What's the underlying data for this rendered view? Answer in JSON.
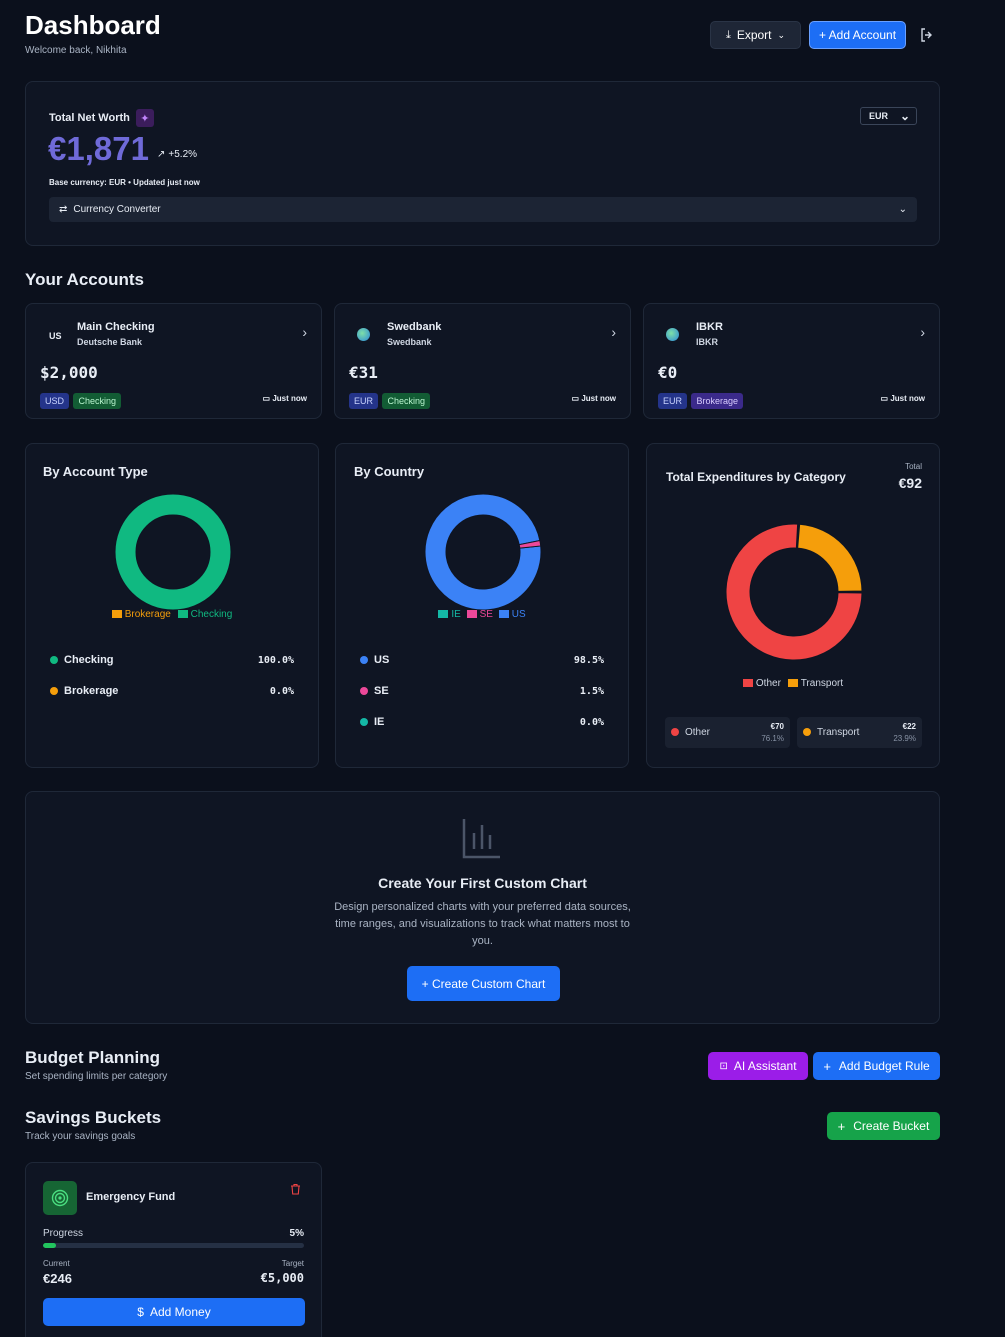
{
  "header": {
    "title": "Dashboard",
    "subtitle": "Welcome back, Nikhita",
    "export_label": "Export",
    "add_account_label": "+ Add Account"
  },
  "networth": {
    "label": "Total Net Worth",
    "value": "€1,871",
    "change": "+5.2%",
    "currency": "EUR",
    "meta": "Base currency: EUR • Updated just now",
    "converter_label": "Currency Converter"
  },
  "accounts": {
    "heading": "Your Accounts",
    "items": [
      {
        "icon": "US",
        "name": "Main Checking",
        "bank": "Deutsche Bank",
        "balance": "$2,000",
        "currency": "USD",
        "type": "Checking",
        "updated": "Just now"
      },
      {
        "icon": "globe",
        "name": "Swedbank",
        "bank": "Swedbank",
        "balance": "€31",
        "currency": "EUR",
        "type": "Checking",
        "updated": "Just now"
      },
      {
        "icon": "globe",
        "name": "IBKR",
        "bank": "IBKR",
        "balance": "€0",
        "currency": "EUR",
        "type": "Brokerage",
        "updated": "Just now"
      }
    ]
  },
  "by_type": {
    "title": "By Account Type",
    "legend": [
      "Brokerage",
      "Checking"
    ],
    "rows": [
      {
        "label": "Checking",
        "value": "100.0%",
        "color": "#10b981"
      },
      {
        "label": "Brokerage",
        "value": "0.0%",
        "color": "#f59e0b"
      }
    ]
  },
  "by_country": {
    "title": "By Country",
    "legend": [
      "IE",
      "SE",
      "US"
    ],
    "rows": [
      {
        "label": "US",
        "value": "98.5%",
        "color": "#3b82f6"
      },
      {
        "label": "SE",
        "value": "1.5%",
        "color": "#ec4899"
      },
      {
        "label": "IE",
        "value": "0.0%",
        "color": "#14b8a6"
      }
    ]
  },
  "expenditures": {
    "title": "Total Expenditures by Category",
    "total_label": "Total",
    "total_value": "€92",
    "legend": [
      "Other",
      "Transport"
    ],
    "items": [
      {
        "label": "Other",
        "amount": "€70",
        "pct": "76.1%",
        "color": "#ef4444"
      },
      {
        "label": "Transport",
        "amount": "€22",
        "pct": "23.9%",
        "color": "#f59e0b"
      }
    ]
  },
  "chart_data": [
    {
      "type": "pie",
      "categories": [
        "Checking",
        "Brokerage"
      ],
      "values": [
        100.0,
        0.0
      ],
      "title": "By Account Type",
      "colors": [
        "#10b981",
        "#f59e0b"
      ]
    },
    {
      "type": "pie",
      "categories": [
        "US",
        "SE",
        "IE"
      ],
      "values": [
        98.5,
        1.5,
        0.0
      ],
      "title": "By Country",
      "colors": [
        "#3b82f6",
        "#ec4899",
        "#14b8a6"
      ]
    },
    {
      "type": "pie",
      "categories": [
        "Other",
        "Transport"
      ],
      "values": [
        70,
        22
      ],
      "title": "Total Expenditures by Category",
      "colors": [
        "#ef4444",
        "#f59e0b"
      ]
    }
  ],
  "custom_chart": {
    "title": "Create Your First Custom Chart",
    "desc_line1": "Design personalized charts with your preferred data sources,",
    "desc_line2": "time ranges, and visualizations to track what matters most to",
    "desc_line3": "you.",
    "button": "+ Create Custom Chart"
  },
  "budget": {
    "title": "Budget Planning",
    "subtitle": "Set spending limits per category",
    "ai_button": "AI Assistant",
    "add_rule_button": "Add Budget Rule"
  },
  "savings": {
    "title": "Savings Buckets",
    "subtitle": "Track your savings goals",
    "create_button": "Create Bucket",
    "bucket": {
      "name": "Emergency Fund",
      "progress_label": "Progress",
      "progress_pct": "5%",
      "progress_value": 0.05,
      "current_label": "Current",
      "current_value": "€246",
      "target_label": "Target",
      "target_value": "€5,000",
      "add_money": "Add Money"
    }
  }
}
